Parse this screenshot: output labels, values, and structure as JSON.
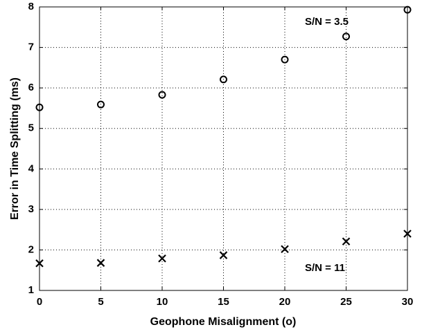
{
  "chart_data": {
    "type": "scatter",
    "xlabel": "Geophone Misalignment (o)",
    "ylabel": "Error in Time Splitting (ms)",
    "x": [
      0,
      5,
      10,
      15,
      20,
      25,
      30
    ],
    "series": [
      {
        "marker": "o",
        "color": "#000000",
        "values": [
          5.52,
          5.59,
          5.83,
          6.21,
          6.7,
          7.27,
          7.93
        ]
      },
      {
        "marker": "x",
        "color": "#000000",
        "values": [
          1.67,
          1.68,
          1.79,
          1.87,
          2.02,
          2.21,
          2.4
        ]
      }
    ],
    "annotations": [
      "S/N = 3.5",
      "S/N = 11"
    ],
    "xlim": [
      0,
      30
    ],
    "xticks": [
      0,
      5,
      10,
      15,
      20,
      25,
      30
    ],
    "ylim": [
      1,
      8
    ],
    "yticks": [
      1,
      2,
      3,
      4,
      5,
      6,
      7,
      8
    ],
    "grid": true
  }
}
